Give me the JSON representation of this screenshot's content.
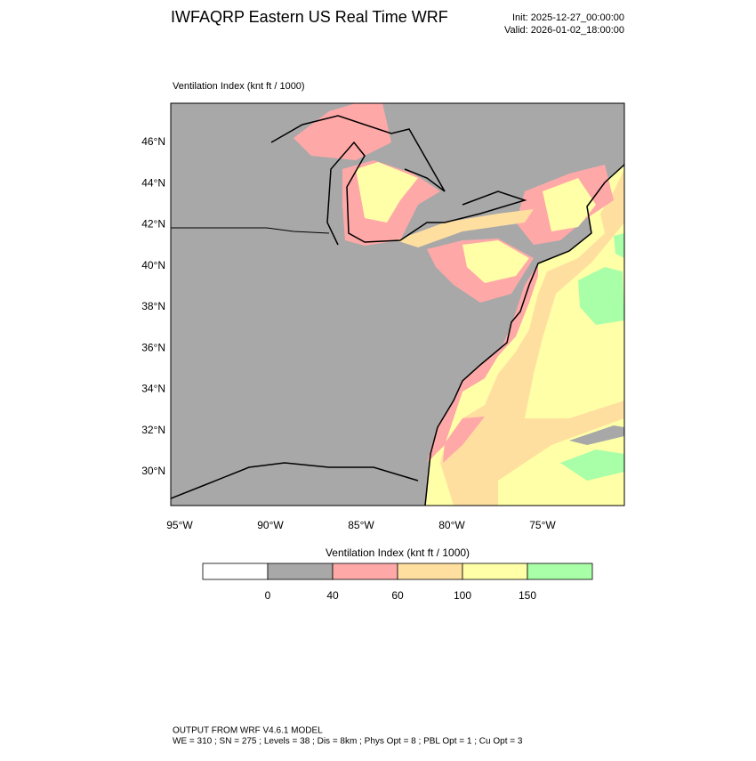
{
  "header": {
    "title": "IWFAQRP Eastern US Real Time WRF",
    "init": "Init: 2025-12-27_00:00:00",
    "valid": "Valid: 2026-01-02_18:00:00"
  },
  "map": {
    "subtitle": "Ventilation Index   (knt ft / 1000)",
    "lat_labels": [
      "46°N",
      "44°N",
      "42°N",
      "40°N",
      "38°N",
      "36°N",
      "34°N",
      "32°N",
      "30°N"
    ],
    "lon_labels": [
      "95°W",
      "90°W",
      "85°W",
      "80°W",
      "75°W"
    ]
  },
  "colorbar": {
    "title": "Ventilation Index  (knt ft / 1000)",
    "colors": [
      "#ffffff",
      "#a8a8a8",
      "#ffa8a8",
      "#ffdfa0",
      "#ffffa8",
      "#a8ffa8"
    ],
    "ticks": [
      0,
      40,
      60,
      100,
      150
    ]
  },
  "footer": {
    "line1": "OUTPUT FROM WRF V4.6.1 MODEL",
    "line2": "WE = 310 ; SN = 275 ; Levels = 38 ; Dis = 8km ; Phys Opt = 8 ; PBL Opt = 1 ; Cu Opt = 3"
  }
}
